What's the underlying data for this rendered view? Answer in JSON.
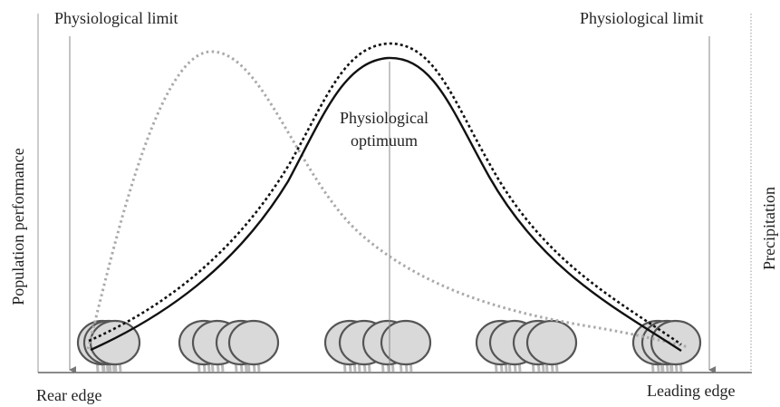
{
  "labels": {
    "top_left": "Physiological limit",
    "top_right": "Physiological limit",
    "optimum": [
      "Physiological",
      "optimuum"
    ],
    "y_left": "Population performance",
    "y_right": "Precipitation",
    "bottom_left": "Rear edge",
    "bottom_right": "Leading edge"
  }
}
